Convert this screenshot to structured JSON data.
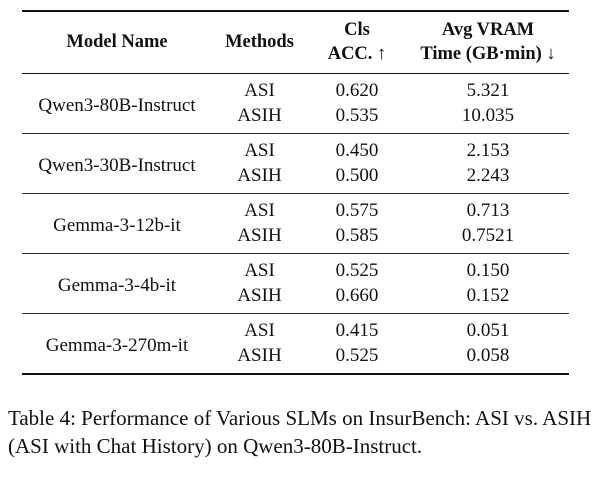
{
  "table": {
    "headers": {
      "model_name": "Model Name",
      "methods": "Methods",
      "cls_line1": "Cls",
      "cls_line2": "ACC. ↑",
      "vram_line1": "Avg VRAM",
      "vram_line2": "Time (GB·min) ↓"
    },
    "groups": [
      {
        "model": "Qwen3-80B-Instruct",
        "rows": [
          {
            "method": "ASI",
            "acc": "0.620",
            "vram": "5.321"
          },
          {
            "method": "ASIH",
            "acc": "0.535",
            "vram": "10.035"
          }
        ]
      },
      {
        "model": "Qwen3-30B-Instruct",
        "rows": [
          {
            "method": "ASI",
            "acc": "0.450",
            "vram": "2.153"
          },
          {
            "method": "ASIH",
            "acc": "0.500",
            "vram": "2.243"
          }
        ]
      },
      {
        "model": "Gemma-3-12b-it",
        "rows": [
          {
            "method": "ASI",
            "acc": "0.575",
            "vram": "0.713"
          },
          {
            "method": "ASIH",
            "acc": "0.585",
            "vram": "0.7521"
          }
        ]
      },
      {
        "model": "Gemma-3-4b-it",
        "rows": [
          {
            "method": "ASI",
            "acc": "0.525",
            "vram": "0.150"
          },
          {
            "method": "ASIH",
            "acc": "0.660",
            "vram": "0.152"
          }
        ]
      },
      {
        "model": "Gemma-3-270m-it",
        "rows": [
          {
            "method": "ASI",
            "acc": "0.415",
            "vram": "0.051"
          },
          {
            "method": "ASIH",
            "acc": "0.525",
            "vram": "0.058"
          }
        ]
      }
    ]
  },
  "caption": "Table 4: Performance of Various SLMs on InsurBench: ASI vs. ASIH (ASI with Chat History) on Qwen3-80B-Instruct."
}
